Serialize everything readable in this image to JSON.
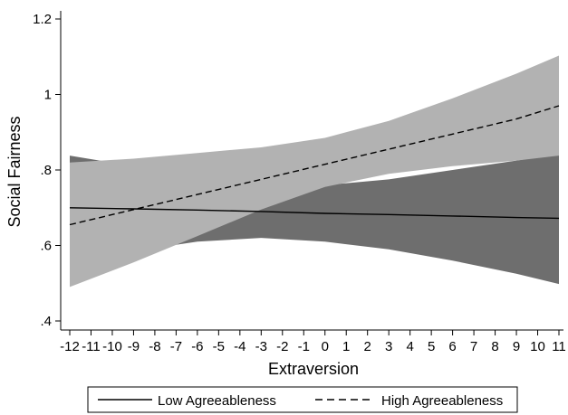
{
  "chart_data": {
    "type": "line",
    "title": "",
    "xlabel": "Extraversion",
    "ylabel": "Social Fairness",
    "xlim": [
      -12,
      11
    ],
    "ylim": [
      0.4,
      1.2
    ],
    "x_ticks": [
      -12,
      -11,
      -10,
      -9,
      -8,
      -7,
      -6,
      -5,
      -4,
      -3,
      -2,
      -1,
      0,
      1,
      2,
      3,
      4,
      5,
      6,
      7,
      8,
      9,
      10,
      11
    ],
    "y_ticks": [
      {
        "value": 0.4,
        "label": ".4"
      },
      {
        "value": 0.6,
        "label": ".6"
      },
      {
        "value": 0.8,
        "label": ".8"
      },
      {
        "value": 1.0,
        "label": "1"
      },
      {
        "value": 1.2,
        "label": "1.2"
      }
    ],
    "grid": false,
    "legend_position": "bottom",
    "series": [
      {
        "name": "Low Agreeableness",
        "line_style": "solid",
        "line_color": "#000000",
        "band_color": "#6e6e6e",
        "x": [
          -12,
          -9,
          -6,
          -3,
          0,
          3,
          6,
          9,
          11
        ],
        "y": [
          0.7,
          0.697,
          0.694,
          0.69,
          0.685,
          0.682,
          0.678,
          0.674,
          0.672
        ],
        "lower": [
          0.565,
          0.585,
          0.61,
          0.62,
          0.61,
          0.59,
          0.56,
          0.525,
          0.498
        ],
        "upper": [
          0.838,
          0.81,
          0.78,
          0.76,
          0.76,
          0.775,
          0.8,
          0.825,
          0.842
        ]
      },
      {
        "name": "High Agreeableness",
        "line_style": "dashed",
        "line_color": "#000000",
        "band_color": "#b2b2b2",
        "x": [
          -12,
          -9,
          -6,
          -3,
          0,
          3,
          6,
          9,
          11
        ],
        "y": [
          0.655,
          0.695,
          0.735,
          0.775,
          0.815,
          0.855,
          0.895,
          0.935,
          0.97
        ],
        "lower": [
          0.49,
          0.555,
          0.625,
          0.695,
          0.755,
          0.79,
          0.81,
          0.825,
          0.838
        ],
        "upper": [
          0.82,
          0.83,
          0.845,
          0.86,
          0.885,
          0.93,
          0.99,
          1.055,
          1.103
        ]
      }
    ],
    "legend": [
      {
        "label": "Low Agreeableness",
        "line_style": "solid"
      },
      {
        "label": "High Agreeableness",
        "line_style": "dashed"
      }
    ]
  }
}
